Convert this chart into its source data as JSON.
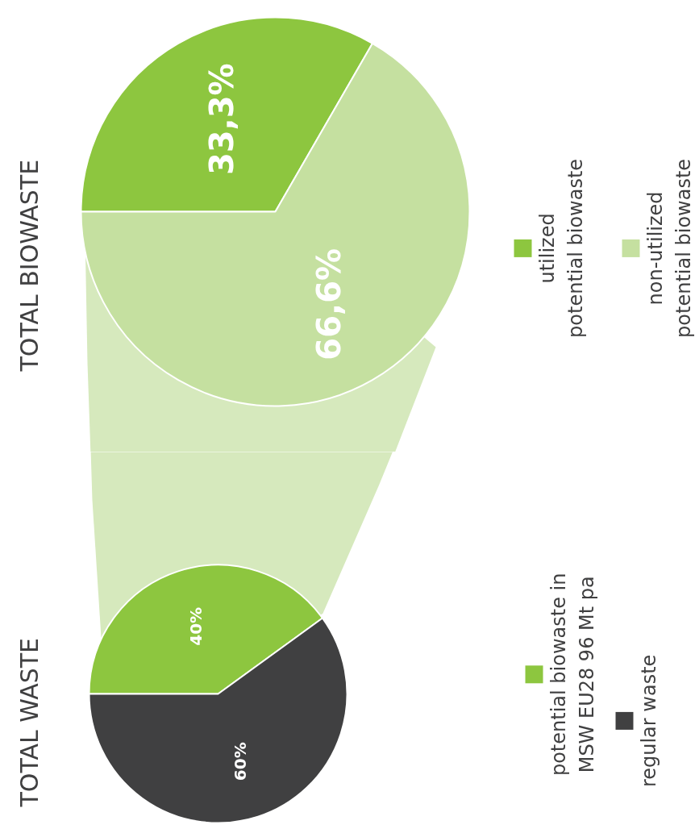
{
  "chart_data": [
    {
      "type": "pie",
      "title": "TOTAL BIOWASTE",
      "categories": [
        "utilized\npotential biowaste",
        "non-utilized\npotential biowaste"
      ],
      "values": [
        33.3,
        66.6
      ],
      "value_labels": [
        "33,3%",
        "66,6%"
      ],
      "colors": [
        "#8dc63f",
        "#c5e0a0"
      ],
      "legend": "right"
    },
    {
      "type": "pie",
      "title": "TOTAL WASTE",
      "categories": [
        "potential biowaste in\nMSW EU28 96 Mt pa",
        "regular waste"
      ],
      "values": [
        40,
        60
      ],
      "value_labels": [
        "40%",
        "60%"
      ],
      "colors": [
        "#8dc63f",
        "#404041"
      ],
      "legend": "right"
    }
  ]
}
